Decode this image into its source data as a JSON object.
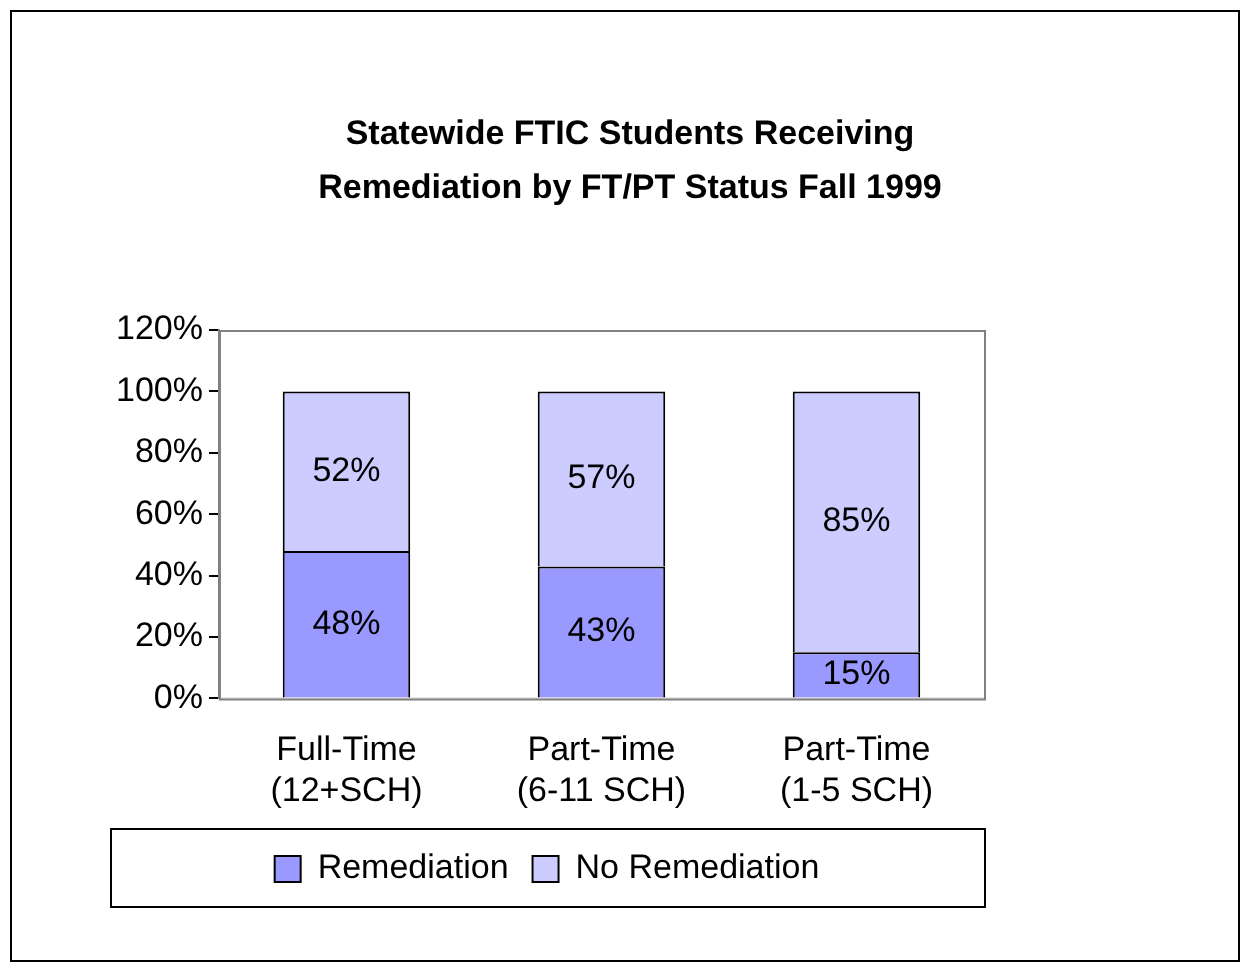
{
  "chart_data": {
    "type": "bar",
    "title": "Statewide FTIC Students Receiving Remediation by FT/PT Status Fall 1999",
    "categories": [
      "Full-Time (12+SCH)",
      "Part-Time (6-11 SCH)",
      "Part-Time (1-5 SCH)"
    ],
    "stacked": true,
    "grid": false,
    "legend": "bottom",
    "ylim": [
      0,
      120
    ],
    "yticks": [
      {
        "value": 0,
        "label": "0%"
      },
      {
        "value": 20,
        "label": "20%"
      },
      {
        "value": 40,
        "label": "40%"
      },
      {
        "value": 60,
        "label": "60%"
      },
      {
        "value": 80,
        "label": "80%"
      },
      {
        "value": 100,
        "label": "100%"
      },
      {
        "value": 120,
        "label": "120%"
      }
    ],
    "series": [
      {
        "name": "Remediation",
        "color": "#9999ff",
        "values": [
          48,
          43,
          15
        ],
        "value_labels": [
          "48%",
          "43%",
          "15%"
        ]
      },
      {
        "name": "No Remediation",
        "color": "#ccccff",
        "values": [
          52,
          57,
          85
        ],
        "value_labels": [
          "52%",
          "57%",
          "85%"
        ]
      }
    ]
  }
}
